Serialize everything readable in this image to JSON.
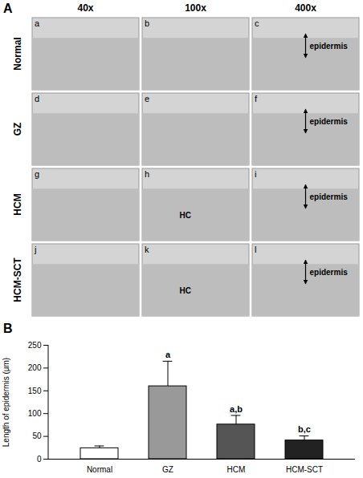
{
  "panel_a": {
    "label": "A",
    "columns": [
      "40x",
      "100x",
      "400x"
    ],
    "rows": [
      {
        "label": "Normal",
        "panels": [
          {
            "letter": "a",
            "marks": []
          },
          {
            "letter": "b",
            "marks": []
          },
          {
            "letter": "c",
            "marks": [
              "epidermis"
            ]
          }
        ]
      },
      {
        "label": "GZ",
        "panels": [
          {
            "letter": "d",
            "marks": []
          },
          {
            "letter": "e",
            "marks": []
          },
          {
            "letter": "f",
            "marks": [
              "epidermis"
            ]
          }
        ]
      },
      {
        "label": "HCM",
        "panels": [
          {
            "letter": "g",
            "marks": []
          },
          {
            "letter": "h",
            "marks": [
              "HC"
            ]
          },
          {
            "letter": "i",
            "marks": [
              "epidermis"
            ]
          }
        ]
      },
      {
        "label": "HCM-SCT",
        "panels": [
          {
            "letter": "j",
            "marks": []
          },
          {
            "letter": "k",
            "marks": [
              "HC"
            ]
          },
          {
            "letter": "l",
            "marks": [
              "epidermis"
            ]
          }
        ]
      }
    ]
  },
  "chart_data": {
    "type": "bar",
    "panel_label": "B",
    "categories": [
      "Normal",
      "GZ",
      "HCM",
      "HCM-SCT"
    ],
    "values": [
      24,
      160,
      76,
      41
    ],
    "errors": [
      5,
      55,
      20,
      10
    ],
    "colors": [
      "#ffffff",
      "#999999",
      "#555555",
      "#222222"
    ],
    "annotations": [
      {
        "category": "GZ",
        "text": "a"
      },
      {
        "category": "HCM",
        "text": "a,b"
      },
      {
        "category": "HCM-SCT",
        "text": "b,c"
      }
    ],
    "ylabel": "Length of epidermis (μm)",
    "ylim": [
      0,
      250
    ],
    "yticks": [
      0,
      50,
      100,
      150,
      200,
      250
    ],
    "grid": false
  }
}
